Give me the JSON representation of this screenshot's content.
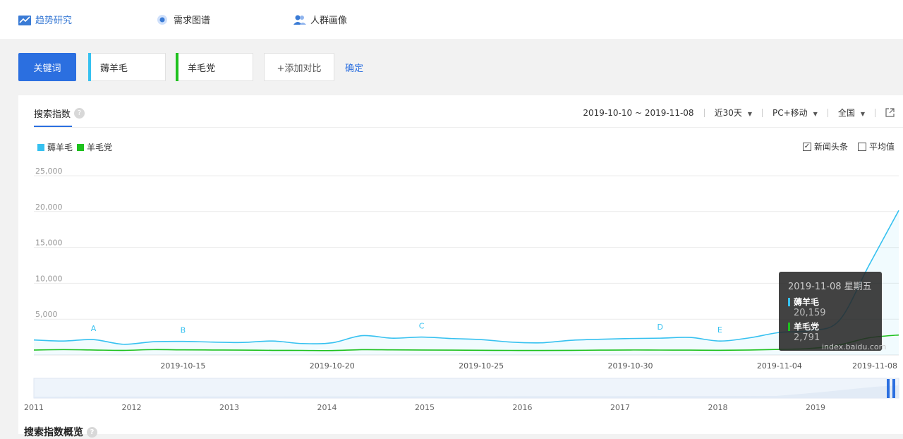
{
  "nav": {
    "items": [
      {
        "label": "趋势研究",
        "active": true
      },
      {
        "label": "需求图谱",
        "active": false
      },
      {
        "label": "人群画像",
        "active": false
      }
    ]
  },
  "keywords": {
    "type_button": "关键词",
    "terms": [
      {
        "label": "薅羊毛",
        "color": "#36c1f0"
      },
      {
        "label": "羊毛党",
        "color": "#1ec11e"
      }
    ],
    "add_compare": "+添加对比",
    "confirm": "确定"
  },
  "panel": {
    "title": "搜索指数",
    "help": "?",
    "date_range": "2019-10-10 ~ 2019-11-08",
    "period": "近30天",
    "device": "PC+移动",
    "region": "全国",
    "options": {
      "news": "新闻头条",
      "news_checked": true,
      "average": "平均值",
      "average_checked": false
    }
  },
  "tooltip": {
    "date": "2019-11-08 星期五",
    "rows": [
      {
        "name": "薅羊毛",
        "value": "20,159",
        "color": "#36c1f0"
      },
      {
        "name": "羊毛党",
        "value": "2,791",
        "color": "#1ec11e"
      }
    ]
  },
  "watermark": "index.baidu.com",
  "bottom_title": "搜索指数概览",
  "chart_data": {
    "type": "line",
    "ylim": [
      0,
      25000
    ],
    "y_ticks": [
      "25,000",
      "20,000",
      "15,000",
      "10,000",
      "5,000"
    ],
    "y_tick_values": [
      25000,
      20000,
      15000,
      10000,
      5000
    ],
    "x_tick_labels": [
      "2019-10-15",
      "2019-10-20",
      "2019-10-25",
      "2019-10-30",
      "2019-11-04",
      "2019-11-08"
    ],
    "x_tick_index": [
      5,
      10,
      15,
      20,
      25,
      29
    ],
    "x": [
      "2019-10-10",
      "2019-10-11",
      "2019-10-12",
      "2019-10-13",
      "2019-10-14",
      "2019-10-15",
      "2019-10-16",
      "2019-10-17",
      "2019-10-18",
      "2019-10-19",
      "2019-10-20",
      "2019-10-21",
      "2019-10-22",
      "2019-10-23",
      "2019-10-24",
      "2019-10-25",
      "2019-10-26",
      "2019-10-27",
      "2019-10-28",
      "2019-10-29",
      "2019-10-30",
      "2019-10-31",
      "2019-11-01",
      "2019-11-02",
      "2019-11-03",
      "2019-11-04",
      "2019-11-05",
      "2019-11-06",
      "2019-11-07",
      "2019-11-08"
    ],
    "series": [
      {
        "name": "薅羊毛",
        "color": "#36c1f0",
        "values": [
          2100,
          1950,
          2150,
          1500,
          1850,
          1900,
          1800,
          1750,
          1950,
          1600,
          1700,
          2700,
          2350,
          2500,
          2300,
          2150,
          1800,
          1700,
          2050,
          2200,
          2300,
          2350,
          2450,
          1950,
          2400,
          3150,
          3400,
          4800,
          12500,
          20159
        ]
      },
      {
        "name": "羊毛党",
        "color": "#1ec11e",
        "values": [
          700,
          750,
          700,
          650,
          750,
          720,
          700,
          680,
          650,
          640,
          620,
          740,
          720,
          700,
          680,
          660,
          640,
          630,
          650,
          680,
          700,
          690,
          680,
          660,
          700,
          780,
          900,
          1400,
          2400,
          2791
        ]
      }
    ],
    "annotations": [
      {
        "label": "A",
        "x": "2019-10-12"
      },
      {
        "label": "B",
        "x": "2019-10-15"
      },
      {
        "label": "C",
        "x": "2019-10-23"
      },
      {
        "label": "D",
        "x": "2019-10-31"
      },
      {
        "label": "E",
        "x": "2019-11-02"
      }
    ],
    "overview_years": [
      "2011",
      "2012",
      "2013",
      "2014",
      "2015",
      "2016",
      "2017",
      "2018",
      "2019"
    ]
  }
}
